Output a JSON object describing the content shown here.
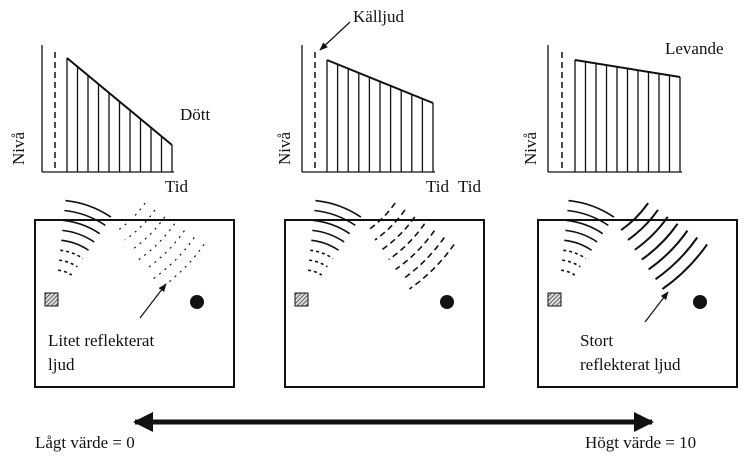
{
  "panels": [
    {
      "label": "Dött",
      "y_label": "Nivå",
      "x_label": "Tid"
    },
    {
      "annotation": "Källjud",
      "y_label": "Nivå",
      "x_label": "Tid",
      "extra_x_label": "Tid"
    },
    {
      "label": "Levande",
      "y_label": "Nivå"
    }
  ],
  "rooms": {
    "left_label": [
      "Litet reflekterat",
      "ljud"
    ],
    "right_label": [
      "Stort",
      "reflekterat ljud"
    ]
  },
  "scale": {
    "low": "Lågt värde = 0",
    "high": "Högt värde = 10"
  }
}
